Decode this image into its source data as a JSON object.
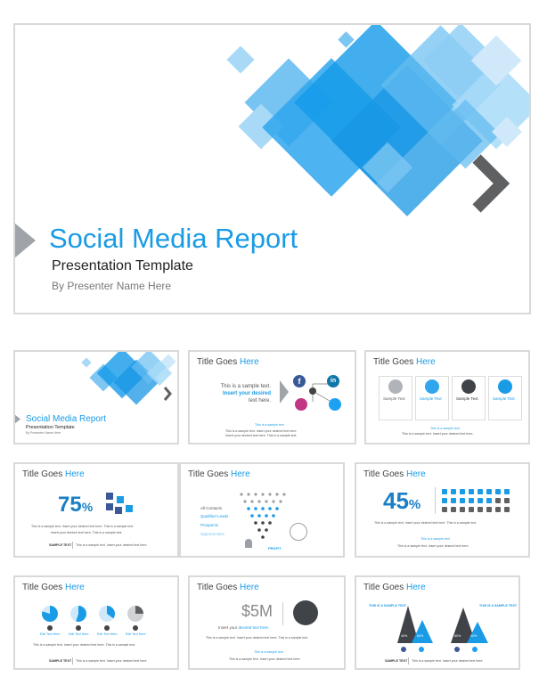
{
  "hero": {
    "title": "Social Media Report",
    "subtitle": "Presentation Template",
    "presenter": "By Presenter Name Here"
  },
  "colors": {
    "accent": "#1a9be6",
    "accent_light": "#7cc7f2",
    "dark_gray": "#5f6062",
    "border": "#d9d9d9"
  },
  "thumb_common": {
    "title_prefix": "Title Goes ",
    "title_highlight": "Here",
    "sample_body": "This is a sample text. Insert your desired text here. This is a sample text.",
    "sample_body2": "Insert your desired text here. This is a sample text.",
    "sample_text_label": "SAMPLE TEXT",
    "sample_line": "This is a sample text. Insert your desired text here.",
    "sample_blue": "This is a sample text"
  },
  "thumb1": {
    "title": "Social Media Report",
    "subtitle": "Presentation Template",
    "presenter": "By Presenter Name Here"
  },
  "thumb2": {
    "text1": "This is a sample text.",
    "text2": "Insert your desired",
    "text3": "text here.",
    "icons": [
      "facebook-icon",
      "linkedin-icon",
      "instagram-icon",
      "twitter-icon"
    ]
  },
  "thumb3": {
    "cards": [
      {
        "label": "Sample Text",
        "icon": "whatsapp-icon"
      },
      {
        "label": "Sample Text",
        "icon": "heart-icon"
      },
      {
        "label": "Sample Text",
        "icon": "chat-icon"
      },
      {
        "label": "Sample Text",
        "icon": "add-user-icon"
      }
    ],
    "card_body": "This is a sample text. Insert your desired text here."
  },
  "thumb4": {
    "stat": "75",
    "unit": "%"
  },
  "thumb5": {
    "labels": [
      "All Contacts",
      "Qualified Leads",
      "Prospects",
      "Opportunities"
    ],
    "profit": "PROFIT"
  },
  "thumb6": {
    "stat": "45",
    "unit": "%"
  },
  "thumb7": {
    "labels": [
      "Edit Text Here",
      "Edit Text Here",
      "Edit Text Here",
      "Edit Text Here"
    ]
  },
  "thumb8": {
    "stat": "$5M",
    "caption_a": "Insert your ",
    "caption_b": "desired text here."
  },
  "thumb9": {
    "left_label": "THIS IS A SAMPLE TEXT",
    "right_label": "THIS IS A SAMPLE TEXT",
    "pcts": [
      "40%",
      "60%",
      "80%",
      "20%"
    ]
  }
}
